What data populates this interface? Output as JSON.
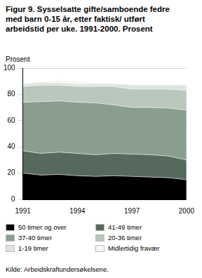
{
  "chart_data": {
    "type": "area",
    "title": "Figur 9. Sysselsatte gifte/samboende fedre med barn 0-15 år, etter faktisk/ utført arbeidstid per uke. 1991-2000. Prosent",
    "ylabel": "Prosent",
    "source": "Kilde: Arbeidskraftundersøkelsene.",
    "categories": [
      "1991",
      null,
      null,
      "1994",
      null,
      null,
      "1997",
      null,
      null,
      "2000"
    ],
    "series": [
      {
        "name": "50 timer og over",
        "color": "#000000",
        "values": [
          20,
          18.5,
          19,
          18,
          17.5,
          18,
          17.5,
          17,
          16.5,
          15
        ]
      },
      {
        "name": "41-49 timer",
        "color": "#56695d",
        "values": [
          17,
          16.5,
          17,
          17,
          16.5,
          17,
          17,
          17,
          16.5,
          15
        ]
      },
      {
        "name": "37-40 timer",
        "color": "#8a9e90",
        "values": [
          37,
          39.5,
          39,
          39,
          39.5,
          37,
          35.5,
          36,
          36.5,
          38
        ]
      },
      {
        "name": "20-36 timer",
        "color": "#b9c7bc",
        "values": [
          12,
          12.5,
          12,
          12,
          12.5,
          14,
          14,
          14,
          14.5,
          15
        ]
      },
      {
        "name": "1-19 timer",
        "color": "#dde5df",
        "values": [
          2,
          2,
          2,
          2,
          2,
          2,
          3,
          3,
          3,
          4
        ]
      },
      {
        "name": "Midlertidig fravær",
        "color": "#f5f7f5",
        "values": [
          1,
          1,
          2,
          2,
          1,
          1,
          1,
          1,
          1,
          1
        ]
      }
    ],
    "stacked": true,
    "ylim": [
      0,
      100
    ],
    "yticks": [
      0,
      20,
      40,
      60,
      80,
      100
    ],
    "grid": true,
    "legend": "bottom"
  }
}
